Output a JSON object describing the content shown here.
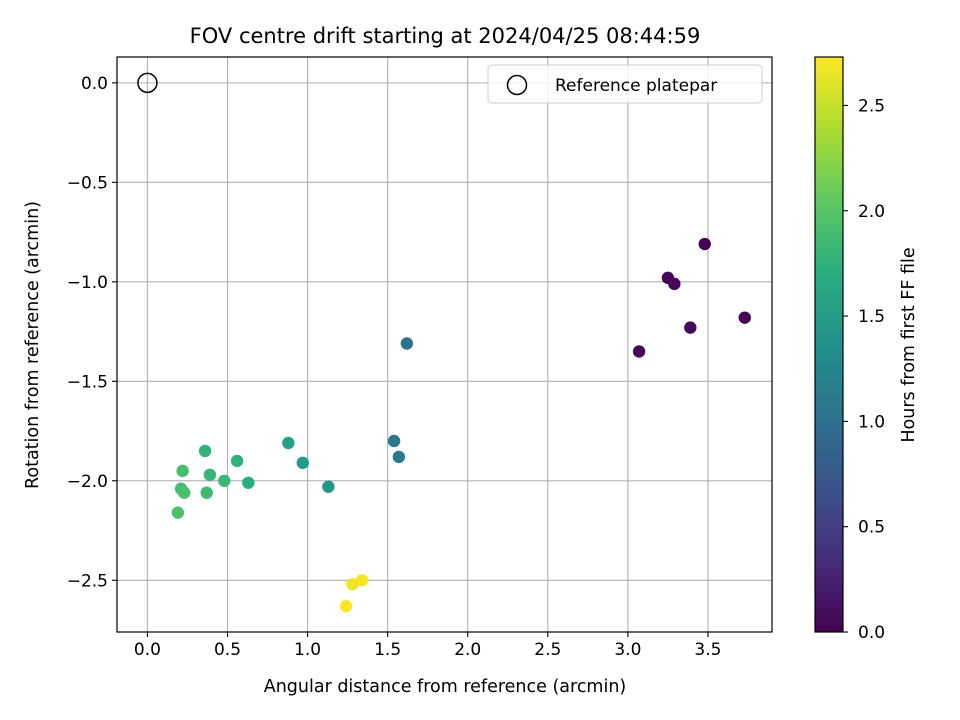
{
  "chart_data": {
    "type": "scatter",
    "title": "FOV centre drift starting at 2024/04/25 08:44:59",
    "xlabel": "Angular distance from reference (arcmin)",
    "ylabel": "Rotation from reference (arcmin)",
    "xlim": [
      -0.19,
      3.9
    ],
    "ylim": [
      -2.76,
      0.13
    ],
    "x_ticks": [
      0.0,
      0.5,
      1.0,
      1.5,
      2.0,
      2.5,
      3.0,
      3.5
    ],
    "x_tick_labels": [
      "0.0",
      "0.5",
      "1.0",
      "1.5",
      "2.0",
      "2.5",
      "3.0",
      "3.5"
    ],
    "y_ticks": [
      0.0,
      -0.5,
      -1.0,
      -1.5,
      -2.0,
      -2.5
    ],
    "y_tick_labels": [
      "0.0",
      "−0.5",
      "−1.0",
      "−1.5",
      "−2.0",
      "−2.5"
    ],
    "grid": true,
    "legend": {
      "placement": "upper right",
      "entries": [
        "Reference platepar"
      ]
    },
    "reference_point": {
      "name": "Reference platepar",
      "x": 0.0,
      "y": 0.0,
      "marker": "open-circle"
    },
    "colorbar": {
      "label": "Hours from first FF file",
      "colormap": "viridis",
      "range": [
        0.0,
        2.73
      ],
      "ticks": [
        0.0,
        0.5,
        1.0,
        1.5,
        2.0,
        2.5
      ],
      "tick_labels": [
        "0.0",
        "0.5",
        "1.0",
        "1.5",
        "2.0",
        "2.5"
      ]
    },
    "points": [
      {
        "x": 3.48,
        "y": -0.81,
        "hours": 0.02
      },
      {
        "x": 3.25,
        "y": -0.98,
        "hours": 0.04
      },
      {
        "x": 3.29,
        "y": -1.01,
        "hours": 0.05
      },
      {
        "x": 3.73,
        "y": -1.18,
        "hours": 0.03
      },
      {
        "x": 3.39,
        "y": -1.23,
        "hours": 0.06
      },
      {
        "x": 3.07,
        "y": -1.35,
        "hours": 0.05
      },
      {
        "x": 1.62,
        "y": -1.31,
        "hours": 1.05
      },
      {
        "x": 1.54,
        "y": -1.8,
        "hours": 1.08
      },
      {
        "x": 1.57,
        "y": -1.88,
        "hours": 1.1
      },
      {
        "x": 1.13,
        "y": -2.03,
        "hours": 1.45
      },
      {
        "x": 0.97,
        "y": -1.91,
        "hours": 1.5
      },
      {
        "x": 0.88,
        "y": -1.81,
        "hours": 1.55
      },
      {
        "x": 0.63,
        "y": -2.01,
        "hours": 1.7
      },
      {
        "x": 0.56,
        "y": -1.9,
        "hours": 1.75
      },
      {
        "x": 0.48,
        "y": -2.0,
        "hours": 1.82
      },
      {
        "x": 0.39,
        "y": -1.97,
        "hours": 1.8
      },
      {
        "x": 0.36,
        "y": -1.85,
        "hours": 1.78
      },
      {
        "x": 0.37,
        "y": -2.06,
        "hours": 1.85
      },
      {
        "x": 0.22,
        "y": -1.95,
        "hours": 1.9
      },
      {
        "x": 0.21,
        "y": -2.04,
        "hours": 1.88
      },
      {
        "x": 0.23,
        "y": -2.06,
        "hours": 1.92
      },
      {
        "x": 0.19,
        "y": -2.16,
        "hours": 1.95
      },
      {
        "x": 1.34,
        "y": -2.5,
        "hours": 2.7
      },
      {
        "x": 1.28,
        "y": -2.52,
        "hours": 2.68
      },
      {
        "x": 1.24,
        "y": -2.63,
        "hours": 2.72
      }
    ]
  }
}
